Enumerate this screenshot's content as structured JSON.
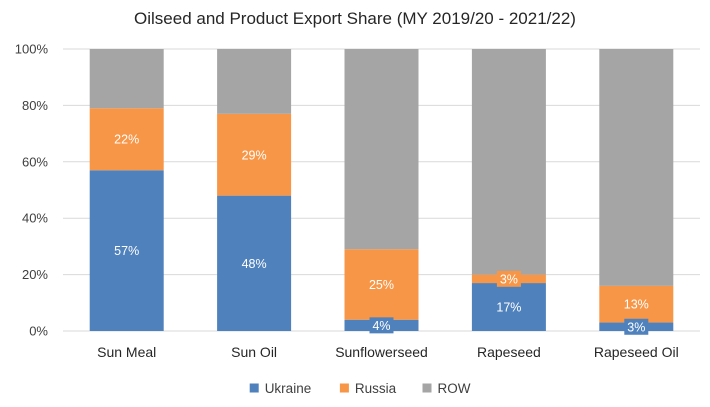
{
  "chart_data": {
    "type": "bar",
    "stacked": true,
    "title": "Oilseed and Product Export Share (MY 2019/20 - 2021/22)",
    "categories": [
      "Sun Meal",
      "Sun Oil",
      "Sunflowerseed",
      "Rapeseed",
      "Rapeseed Oil"
    ],
    "series": [
      {
        "name": "Ukraine",
        "color": "#4f81bd",
        "values": [
          57,
          48,
          4,
          17,
          3
        ],
        "labels": [
          "57%",
          "48%",
          "4%",
          "17%",
          "3%"
        ]
      },
      {
        "name": "Russia",
        "color": "#f79646",
        "values": [
          22,
          29,
          25,
          3,
          13
        ],
        "labels": [
          "22%",
          "29%",
          "25%",
          "3%",
          "13%"
        ]
      },
      {
        "name": "ROW",
        "color": "#a5a5a5",
        "values": [
          21,
          23,
          71,
          80,
          84
        ],
        "labels": []
      }
    ],
    "yticks": [
      "0%",
      "20%",
      "40%",
      "60%",
      "80%",
      "100%"
    ],
    "ylim": [
      0,
      100
    ],
    "xlabel": "",
    "ylabel": "",
    "grid": true,
    "legend": "bottom-center"
  }
}
